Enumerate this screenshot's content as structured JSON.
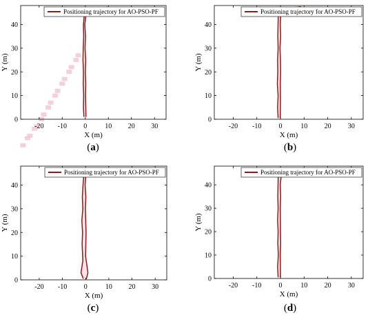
{
  "chart_data": [
    {
      "type": "line",
      "panel_label": "a",
      "xlabel": "X (m)",
      "ylabel": "Y (m)",
      "xlim": [
        -28,
        35
      ],
      "ylim": [
        0,
        48
      ],
      "xticks": [
        -20,
        -10,
        0,
        10,
        20,
        30
      ],
      "yticks": [
        0,
        10,
        20,
        30,
        40
      ],
      "grid": false,
      "legend_position": "top-right",
      "series": [
        {
          "name": "Positioning trajectory for AO-PSO-PF",
          "color": "#8b1a1a",
          "x": [
            -0.6,
            -0.8,
            -0.7,
            -0.9,
            -0.8,
            -1.0,
            -0.9,
            -0.7,
            -0.8,
            -0.3,
            2.0,
            5.5,
            9.5,
            10.2,
            9.0,
            4.0,
            0.5,
            -0.2,
            0.1,
            -0.1,
            0.2,
            0.0,
            0.2,
            0.1,
            0.3
          ],
          "y": [
            1.0,
            5.0,
            10.0,
            15.0,
            20.0,
            25.0,
            30.0,
            35.0,
            40.0,
            46.0,
            47.0,
            46.8,
            47.3,
            46.6,
            46.0,
            45.9,
            45.7,
            40.0,
            35.0,
            30.0,
            25.0,
            20.0,
            15.0,
            10.0,
            1.0
          ]
        }
      ],
      "scatter_markers": {
        "color": "#f2c8d4",
        "x": [
          -25,
          -22,
          -19,
          -16,
          -13,
          -10,
          -7,
          -4,
          -27,
          -24,
          -21,
          -18,
          -15,
          -12,
          -9,
          -6,
          -3
        ],
        "y": [
          -8,
          -4,
          0,
          5,
          10,
          15,
          20,
          25,
          -11,
          -7,
          -3,
          2,
          7,
          12,
          17,
          22,
          27
        ]
      }
    },
    {
      "type": "line",
      "panel_label": "b",
      "xlabel": "X (m)",
      "ylabel": "Y (m)",
      "xlim": [
        -28,
        35
      ],
      "ylim": [
        0,
        48
      ],
      "xticks": [
        -20,
        -10,
        0,
        10,
        20,
        30
      ],
      "yticks": [
        0,
        10,
        20,
        30,
        40
      ],
      "grid": false,
      "legend_position": "top-right",
      "series": [
        {
          "name": "Positioning trajectory for AO-PSO-PF",
          "color": "#8b1a1a",
          "x": [
            -1.0,
            -1.2,
            -1.0,
            -1.3,
            -1.1,
            -1.2,
            -1.0,
            -1.1,
            -0.9,
            2.0,
            5.0,
            8.5,
            9.0,
            8.0,
            4.0,
            0.2,
            -0.1,
            0.1,
            -0.2,
            0.0,
            0.1,
            -0.1,
            0.0,
            -0.1
          ],
          "y": [
            0.5,
            5.0,
            10.0,
            15.0,
            20.0,
            25.0,
            30.0,
            35.0,
            45.5,
            46.5,
            47.0,
            47.5,
            46.5,
            46.0,
            46.0,
            45.5,
            40.0,
            35.0,
            30.0,
            25.0,
            20.0,
            15.0,
            10.0,
            0.5
          ]
        }
      ]
    },
    {
      "type": "line",
      "panel_label": "c",
      "xlabel": "X (m)",
      "ylabel": "Y (m)",
      "xlim": [
        -28,
        35
      ],
      "ylim": [
        0,
        48
      ],
      "xticks": [
        -20,
        -10,
        0,
        10,
        20,
        30
      ],
      "yticks": [
        0,
        10,
        20,
        30,
        40
      ],
      "grid": false,
      "legend_position": "top-right",
      "series": [
        {
          "name": "Positioning trajectory for AO-PSO-PF",
          "color": "#8b1a1a",
          "x": [
            -1.0,
            -2.0,
            -1.2,
            -1.5,
            -1.3,
            -1.6,
            -1.2,
            -1.4,
            -1.1,
            -0.6,
            3.0,
            6.5,
            10.0,
            11.0,
            7.0,
            3.0,
            0.2,
            -0.2,
            0.1,
            -0.1,
            0.2,
            0.0,
            1.0,
            0.3
          ],
          "y": [
            0.5,
            3.0,
            8.0,
            15.0,
            20.0,
            25.0,
            30.0,
            35.0,
            40.0,
            46.5,
            47.0,
            46.5,
            47.2,
            46.8,
            46.5,
            46.3,
            45.8,
            40.0,
            35.0,
            30.0,
            20.0,
            10.0,
            3.0,
            0.3
          ]
        }
      ]
    },
    {
      "type": "line",
      "panel_label": "d",
      "xlabel": "X (m)",
      "ylabel": "Y (m)",
      "xlim": [
        -28,
        35
      ],
      "ylim": [
        0,
        48
      ],
      "xticks": [
        -20,
        -10,
        0,
        10,
        20,
        30
      ],
      "yticks": [
        0,
        10,
        20,
        30,
        40
      ],
      "grid": false,
      "legend_position": "top-right",
      "series": [
        {
          "name": "Positioning trajectory for AO-PSO-PF",
          "color": "#8b1a1a",
          "x": [
            -1.0,
            -1.2,
            -0.9,
            -1.1,
            -1.0,
            -1.2,
            -1.0,
            -1.1,
            -0.9,
            2.0,
            6.0,
            9.0,
            8.5,
            5.0,
            0.5,
            -0.1,
            0.1,
            -0.1,
            0.0,
            0.1,
            -0.1,
            0.0
          ],
          "y": [
            0.5,
            5.0,
            10.0,
            15.0,
            20.0,
            25.0,
            30.0,
            35.0,
            46.8,
            47.2,
            47.0,
            46.8,
            46.0,
            45.8,
            45.6,
            40.0,
            35.0,
            30.0,
            20.0,
            15.0,
            10.0,
            0.5
          ]
        }
      ]
    }
  ]
}
